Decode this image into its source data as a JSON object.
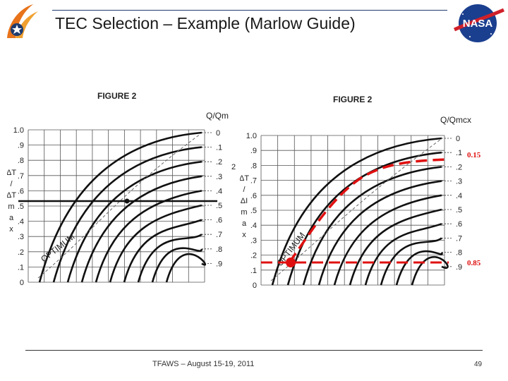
{
  "header": {
    "title": "TEC Selection – Example (Marlow Guide)"
  },
  "figure_left": {
    "title": "FIGURE 2",
    "y_ticks": [
      "1.0",
      ".9",
      ".8",
      ".7",
      ".6",
      ".5",
      ".4",
      ".3",
      ".2",
      ".1",
      "0"
    ],
    "y_axis_label": [
      "ΔT",
      "/",
      "ΔT",
      "m",
      "a",
      "x"
    ],
    "right_header": "Q/Qm",
    "right_ticks": [
      "0",
      ".1",
      ".2",
      ".3",
      ".4",
      ".5",
      ".6",
      ".7",
      ".8",
      ".9"
    ],
    "extra_tick": "2",
    "optimum_label": "OPTIMUM"
  },
  "figure_right": {
    "title": "FIGURE 2",
    "y_ticks": [
      "1.0",
      ".9",
      ".8",
      ".7",
      ".6",
      ".5",
      ".4",
      ".3",
      ".2",
      ".1",
      "0"
    ],
    "y_axis_label": [
      "ΔT",
      "/",
      "ΔI",
      "m",
      "a",
      "x"
    ],
    "right_header": "Q/Qmcx",
    "right_ticks": [
      "0",
      ".1",
      ".2",
      ".3",
      ".4",
      ".5",
      ".6",
      ".7",
      ".8",
      ".9"
    ],
    "optimum_label": "OPTIMUM",
    "annotation_top": "0.15",
    "annotation_bottom": "0.85"
  },
  "colors": {
    "annotation": "#e01010",
    "title_rule": "#1f3b6e"
  },
  "footer": {
    "text": "TFAWS – August 15-19, 2011",
    "page": "49"
  }
}
